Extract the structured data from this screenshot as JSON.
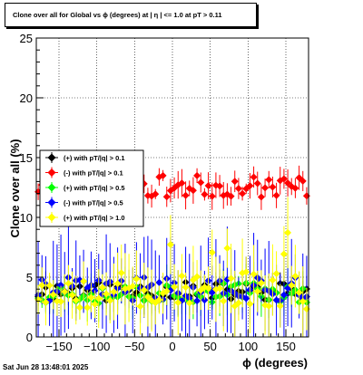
{
  "title": "Clone  over all for Global vs ϕ  (degrees) at |  η  | <= 1.0 at pT > 0.11",
  "timestamp": "Sat Jun 28 13:48:01 2025",
  "chart_data": {
    "type": "scatter",
    "xlabel": "ϕ  (degrees)",
    "ylabel": "Clone  over all (%)",
    "xlim": [
      -180,
      180
    ],
    "ylim": [
      0,
      25
    ],
    "xticks": [
      -150,
      -100,
      -50,
      0,
      50,
      100,
      150
    ],
    "yticks": [
      0,
      5,
      10,
      15,
      20,
      25
    ],
    "grid": true,
    "legend_position": "left-middle",
    "series": [
      {
        "name": "(+) with pT/|q| > 0.1",
        "color": "#000000",
        "level": 3.8,
        "spread": 0.8,
        "err": 1.0,
        "seed": 11
      },
      {
        "name": "(-) with pT/|q| > 0.1",
        "color": "#ff0000",
        "level": 12.6,
        "spread": 0.9,
        "err": 0.8,
        "seed": 23
      },
      {
        "name": "(+) with pT/|q| > 0.5",
        "color": "#00ff00",
        "level": 3.7,
        "spread": 0.9,
        "err": 1.2,
        "seed": 37
      },
      {
        "name": "(-) with pT/|q| > 0.5",
        "color": "#0000ff",
        "level": 4.0,
        "spread": 1.0,
        "err": 3.0,
        "seed": 41
      },
      {
        "name": "(+) with pT/|q| > 1.0",
        "color": "#ffff00",
        "level": 3.9,
        "spread": 1.6,
        "err": 2.0,
        "seed": 53
      }
    ]
  }
}
